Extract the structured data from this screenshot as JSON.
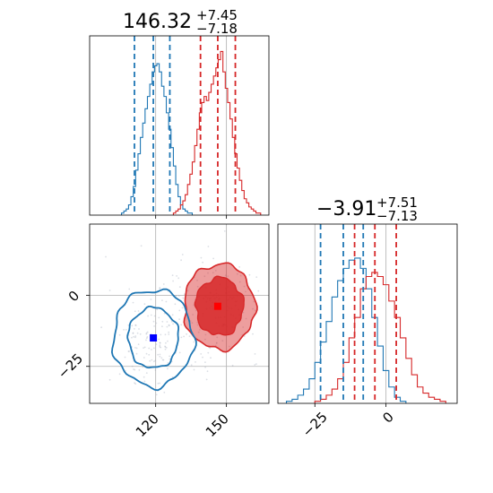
{
  "chart_data": {
    "type": "corner",
    "colors": {
      "series_a": "#1f77b4",
      "series_b": "#d62728",
      "grid": "#b0b0b0"
    },
    "parameters": [
      {
        "title_median": "146.32",
        "title_plus": "+7.45",
        "title_minus": "−7.18",
        "ticks": [
          120,
          150
        ],
        "range": [
          92,
          168
        ]
      },
      {
        "title_median": "−3.91",
        "title_plus": "+7.51",
        "title_minus": "−7.13",
        "ticks": [
          -25,
          0
        ],
        "range": [
          -38,
          25
        ]
      }
    ],
    "tick_labels": {
      "p1": [
        "120",
        "150"
      ],
      "p2": [
        "−25",
        "0"
      ]
    },
    "marginal_p1": {
      "series_a": {
        "name": "blue",
        "x": [
          106,
          107,
          108,
          109,
          110,
          111,
          112,
          113,
          114,
          115,
          116,
          117,
          118,
          119,
          120,
          121,
          122,
          123,
          124,
          125,
          126,
          127,
          128,
          129,
          130,
          131,
          132,
          133,
          134,
          135
        ],
        "y": [
          1,
          2,
          3,
          5,
          9,
          14,
          22,
          30,
          38,
          45,
          52,
          58,
          64,
          70,
          73,
          74,
          70,
          63,
          58,
          50,
          42,
          33,
          24,
          15,
          9,
          5,
          3,
          2,
          1,
          1
        ],
        "quantiles": [
          111,
          119,
          126
        ]
      },
      "series_b": {
        "name": "red",
        "x": [
          128,
          129,
          130,
          131,
          132,
          133,
          134,
          135,
          136,
          137,
          138,
          139,
          140,
          141,
          142,
          143,
          144,
          145,
          146,
          147,
          148,
          149,
          150,
          151,
          152,
          153,
          154,
          155,
          156,
          157,
          158,
          159,
          160,
          161,
          162,
          163,
          164
        ],
        "y": [
          1,
          2,
          3,
          5,
          7,
          10,
          15,
          20,
          26,
          34,
          42,
          50,
          55,
          58,
          56,
          60,
          64,
          68,
          72,
          76,
          80,
          70,
          62,
          55,
          47,
          38,
          30,
          23,
          17,
          12,
          8,
          6,
          4,
          3,
          2,
          1,
          1
        ],
        "quantiles": [
          139,
          146.32,
          153.77
        ]
      }
    },
    "marginal_p2": {
      "series_a": {
        "name": "blue",
        "x": [
          -34,
          -32,
          -30,
          -28,
          -26,
          -24,
          -22,
          -20,
          -18,
          -16,
          -14,
          -12,
          -10,
          -8,
          -6,
          -4,
          -2,
          0,
          2,
          4,
          6
        ],
        "y": [
          1,
          2,
          4,
          7,
          12,
          20,
          30,
          40,
          52,
          60,
          66,
          70,
          71,
          66,
          56,
          42,
          28,
          16,
          8,
          3,
          1
        ],
        "quantiles": [
          -23,
          -15,
          -8
        ]
      },
      "series_b": {
        "name": "red",
        "x": [
          -24,
          -22,
          -20,
          -18,
          -16,
          -14,
          -12,
          -10,
          -8,
          -6,
          -4,
          -2,
          0,
          2,
          4,
          6,
          8,
          10,
          12,
          14,
          16,
          18,
          20
        ],
        "y": [
          1,
          2,
          4,
          7,
          12,
          20,
          32,
          42,
          56,
          62,
          64,
          62,
          58,
          50,
          42,
          32,
          22,
          14,
          8,
          5,
          3,
          2,
          1
        ],
        "quantiles": [
          -11.04,
          -3.91,
          3.6
        ]
      }
    },
    "joint": {
      "series_a": {
        "name": "blue",
        "mean": [
          119,
          -15
        ],
        "sd": [
          8.5,
          8.5
        ],
        "marker": [
          119,
          -15
        ],
        "fill": false
      },
      "series_b": {
        "name": "red",
        "mean": [
          147,
          -4
        ],
        "sd": [
          7.5,
          7.5
        ],
        "marker": [
          146.3,
          -3.9
        ],
        "fill": true
      }
    }
  }
}
